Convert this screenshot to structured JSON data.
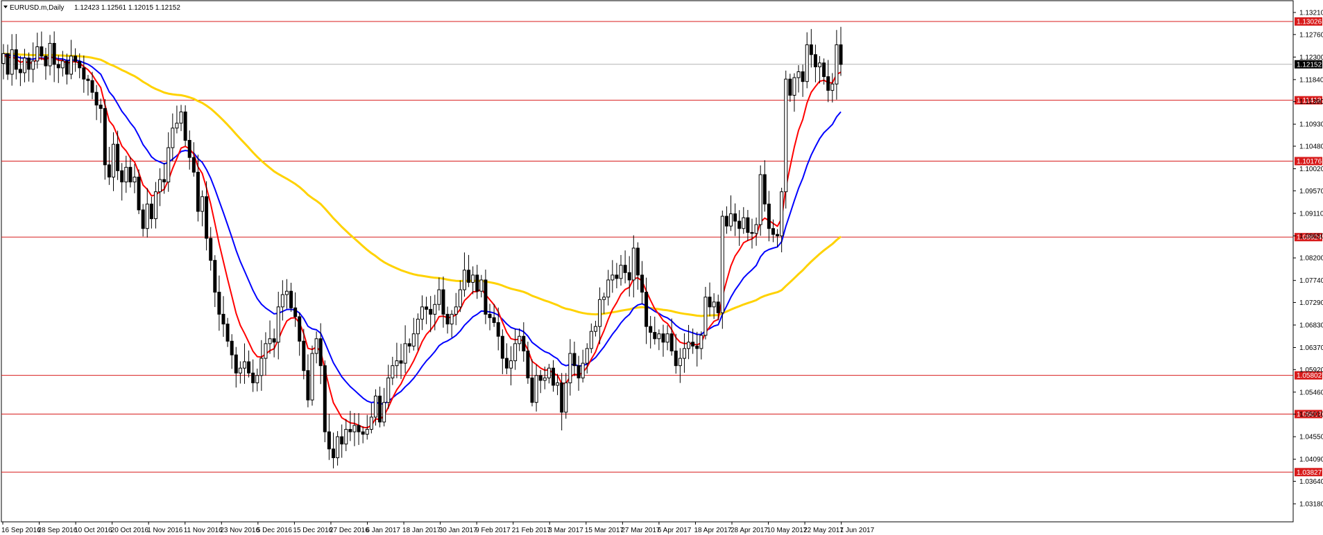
{
  "header": {
    "symbol": "EURUSD.m,Daily",
    "ohlc": "1.12423 1.12561 1.12015 1.12152"
  },
  "colors": {
    "background": "#ffffff",
    "candle": "#000000",
    "level_line": "#d81b1b",
    "ma_fast": "#ff0000",
    "ma_mid": "#0000ff",
    "ma_slow": "#ffd200",
    "current_price_line": "#b4b4b4"
  },
  "chart_data": {
    "type": "candlestick",
    "symbol": "EURUSD.m",
    "timeframe": "Daily",
    "ylim": [
      1.0318,
      1.1321
    ],
    "y_ticks": [
      "1.13210",
      "1.12760",
      "1.12300",
      "1.11840",
      "1.11390",
      "1.10930",
      "1.10480",
      "1.10020",
      "1.09570",
      "1.09110",
      "1.08650",
      "1.08200",
      "1.07740",
      "1.07290",
      "1.06830",
      "1.06370",
      "1.05920",
      "1.05460",
      "1.05010",
      "1.04550",
      "1.04090",
      "1.03640",
      "1.03180"
    ],
    "x_ticks": [
      "16 Sep 2016",
      "28 Sep 2016",
      "10 Oct 2016",
      "20 Oct 2016",
      "1 Nov 2016",
      "11 Nov 2016",
      "23 Nov 2016",
      "5 Dec 2016",
      "15 Dec 2016",
      "27 Dec 2016",
      "6 Jan 2017",
      "18 Jan 2017",
      "30 Jan 2017",
      "9 Feb 2017",
      "21 Feb 2017",
      "3 Mar 2017",
      "15 Mar 2017",
      "27 Mar 2017",
      "6 Apr 2017",
      "18 Apr 2017",
      "28 Apr 2017",
      "10 May 2017",
      "22 May 2017",
      "1 Jun 2017"
    ],
    "current_price": "1.12152",
    "levels": [
      {
        "label": "1.13026",
        "value": 1.13026
      },
      {
        "label": "1.11418",
        "value": 1.11418
      },
      {
        "label": "1.10176",
        "value": 1.10176
      },
      {
        "label": "1.08624",
        "value": 1.08624
      },
      {
        "label": "1.05802",
        "value": 1.05802
      },
      {
        "label": "1.05012",
        "value": 1.05012
      },
      {
        "label": "1.03827",
        "value": 1.03827
      }
    ],
    "closes": [
      1.1237,
      1.1195,
      1.1245,
      1.1205,
      1.1198,
      1.1228,
      1.1205,
      1.1222,
      1.1251,
      1.1232,
      1.1212,
      1.1258,
      1.1215,
      1.1208,
      1.1222,
      1.1195,
      1.1232,
      1.1221,
      1.1208,
      1.1185,
      1.1182,
      1.1158,
      1.1132,
      1.1125,
      1.101,
      1.0985,
      1.1052,
      1.0998,
      1.0975,
      1.1005,
      1.0975,
      1.0985,
      1.0918,
      1.088,
      1.093,
      1.09,
      1.0955,
      1.098,
      1.0975,
      1.1045,
      1.1085,
      1.1095,
      1.1118,
      1.106,
      1.1025,
      1.0995,
      1.0915,
      1.0945,
      1.086,
      1.0815,
      1.075,
      1.0705,
      1.0685,
      1.065,
      1.0622,
      1.0585,
      1.0595,
      1.0608,
      1.0585,
      1.0565,
      1.058,
      1.0615,
      1.0645,
      1.0655,
      1.0648,
      1.072,
      1.0745,
      1.0752,
      1.0718,
      1.07,
      1.065,
      1.059,
      1.053,
      1.0625,
      1.0655,
      1.06,
      1.0465,
      1.043,
      1.0412,
      1.0455,
      1.044,
      1.047,
      1.0465,
      1.0478,
      1.0465,
      1.046,
      1.047,
      1.0495,
      1.0538,
      1.0485,
      1.0525,
      1.0575,
      1.06,
      1.061,
      1.0605,
      1.0645,
      1.064,
      1.0665,
      1.0695,
      1.072,
      1.0715,
      1.0705,
      1.0725,
      1.0755,
      1.0705,
      1.0685,
      1.0705,
      1.072,
      1.0755,
      1.0795,
      1.077,
      1.0785,
      1.0752,
      1.0775,
      1.0705,
      1.0698,
      1.0688,
      1.066,
      1.0615,
      1.0595,
      1.061,
      1.0645,
      1.066,
      1.063,
      1.0575,
      1.0525,
      1.058,
      1.057,
      1.0575,
      1.0595,
      1.056,
      1.0565,
      1.0505,
      1.0565,
      1.0625,
      1.06,
      1.0575,
      1.0605,
      1.0635,
      1.067,
      1.068,
      1.0735,
      1.074,
      1.0775,
      1.0785,
      1.0778,
      1.0805,
      1.079,
      1.0775,
      1.084,
      1.0785,
      1.075,
      1.068,
      1.0668,
      1.0655,
      1.0665,
      1.0648,
      1.0665,
      1.063,
      1.06,
      1.0615,
      1.0635,
      1.0648,
      1.064,
      1.0635,
      1.0662,
      1.074,
      1.072,
      1.073,
      1.0708,
      1.0905,
      1.0885,
      1.091,
      1.0895,
      1.088,
      1.0902,
      1.0872,
      1.087,
      1.0888,
      1.099,
      1.093,
      1.088,
      1.0868,
      1.0865,
      1.0955,
      1.1185,
      1.1152,
      1.1188,
      1.12,
      1.118,
      1.1255,
      1.1235,
      1.121,
      1.1218,
      1.119,
      1.1162,
      1.1175,
      1.1255,
      1.1215
    ]
  }
}
